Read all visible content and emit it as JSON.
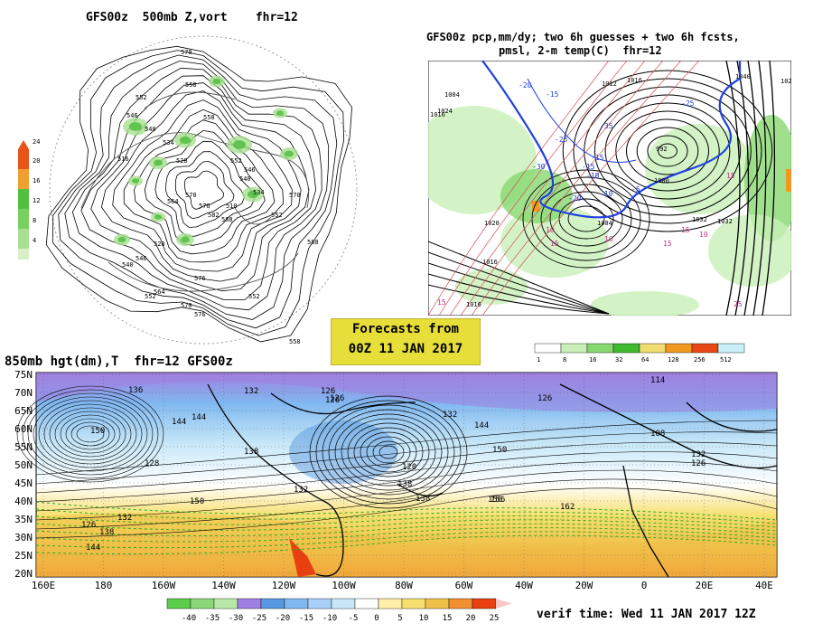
{
  "panel_500mb": {
    "title": "GFS00z  500mb Z,vort    fhr=12",
    "scale_labels": [
      "24",
      "20",
      "16",
      "12",
      "8",
      "4"
    ],
    "scale_colors": [
      "#e8541a",
      "#f0a030",
      "#50c040",
      "#78d060",
      "#a8e090",
      "#d8f0c8"
    ],
    "contour_labels": [
      "570",
      "558",
      "552",
      "546",
      "540",
      "534",
      "516",
      "528",
      "552",
      "546",
      "540",
      "534",
      "510",
      "552",
      "570",
      "588",
      "576",
      "564",
      "570",
      "576",
      "552",
      "558",
      "564",
      "570",
      "576",
      "582",
      "588",
      "528",
      "540",
      "546",
      "552",
      "558"
    ]
  },
  "panel_pcp": {
    "title_line1": "GFS00z pcp,mm/dy; two 6h guesses + two 6h fcsts,",
    "title_line2": "pmsl, 2-m temp(C)  fhr=12",
    "pressure_labels": [
      "1004",
      "1016",
      "1020",
      "1016",
      "1016",
      "1004",
      "1040",
      "1032",
      "1032",
      "992",
      "1020",
      "1000",
      "1012",
      "1016",
      "1024"
    ],
    "temp_labels_blue": [
      "-20",
      "-15",
      "-25",
      "-30",
      "-35",
      "-15",
      "-10",
      "-5",
      "-25",
      "-10",
      "-20",
      "-15"
    ],
    "temp_labels_pink": [
      "10",
      "15",
      "10",
      "15",
      "15",
      "10",
      "15",
      "25",
      "15"
    ]
  },
  "forecast_box": {
    "line1": "Forecasts from",
    "line2": "00Z 11 JAN 2017"
  },
  "pcp_scale": {
    "labels": [
      "1",
      "8",
      "16",
      "32",
      "64",
      "128",
      "256",
      "512"
    ],
    "colors": [
      "#ffffff",
      "#c8f0b8",
      "#88d870",
      "#40b830",
      "#f0dc70",
      "#f09820",
      "#e84818",
      "#c8f0f8"
    ]
  },
  "panel_850mb": {
    "title": "850mb hgt(dm),T  fhr=12 GFS00z",
    "lat_labels": [
      "75N",
      "70N",
      "65N",
      "60N",
      "55N",
      "50N",
      "45N",
      "40N",
      "35N",
      "30N",
      "25N",
      "20N"
    ],
    "lon_labels": [
      "160E",
      "180",
      "160W",
      "140W",
      "120W",
      "100W",
      "80W",
      "60W",
      "40W",
      "20W",
      "0",
      "20E",
      "40E"
    ],
    "height_labels": [
      "136",
      "132",
      "126",
      "144",
      "150",
      "138",
      "132",
      "120",
      "126",
      "132",
      "138",
      "150",
      "144",
      "156",
      "162",
      "138",
      "126",
      "114",
      "108",
      "132",
      "126",
      "138",
      "144",
      "156",
      "132",
      "126",
      "128",
      "150",
      "144",
      "126"
    ],
    "temp_scale_labels": [
      "-40",
      "-35",
      "-30",
      "-25",
      "-20",
      "-15",
      "-10",
      "-5",
      "0",
      "5",
      "10",
      "15",
      "20",
      "25"
    ],
    "temp_scale_colors": [
      "#5acd4a",
      "#8ad87a",
      "#b8e8a8",
      "#a080e0",
      "#5898e0",
      "#80b8f0",
      "#a8d0f8",
      "#c8e8f8",
      "#ffffff",
      "#fff0a8",
      "#f8e070",
      "#f0c048",
      "#f09030",
      "#e84010"
    ]
  },
  "verif_time": "verif time: Wed 11 JAN 2017 12Z"
}
